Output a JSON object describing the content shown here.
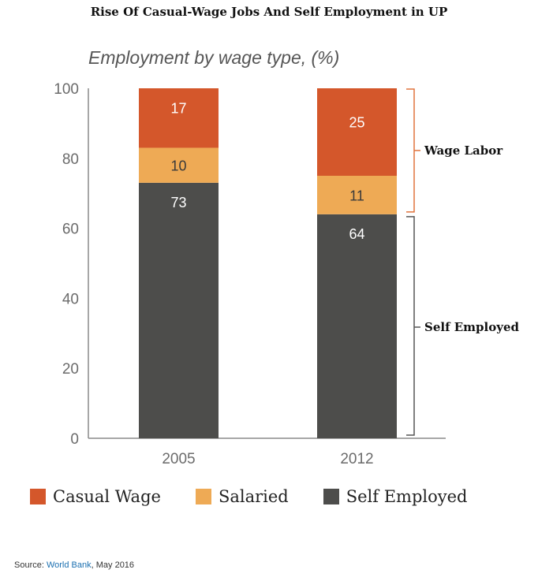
{
  "title": "Rise Of Casual-Wage Jobs And Self Employment in UP",
  "chart_data": {
    "type": "bar",
    "stacked": true,
    "title": "Employment by wage type, (%)",
    "categories": [
      "2005",
      "2012"
    ],
    "series": [
      {
        "name": "Self Employed",
        "values": [
          73,
          64
        ],
        "color": "#4d4d4b"
      },
      {
        "name": "Salaried",
        "values": [
          10,
          11
        ],
        "color": "#eeaa55"
      },
      {
        "name": "Casual Wage",
        "values": [
          17,
          25
        ],
        "color": "#d4572b"
      }
    ],
    "ylim": [
      0,
      100
    ],
    "yticks": [
      "0",
      "20",
      "40",
      "60",
      "80",
      "100"
    ],
    "xlabel": "",
    "ylabel": "",
    "annotations": [
      "Wage Labor",
      "Self Employed"
    ],
    "legend": [
      "Casual Wage",
      "Salaried",
      "Self Employed"
    ],
    "legend_position": "bottom"
  },
  "source": {
    "prefix": "Source: ",
    "link": "World Bank",
    "suffix": ", May 2016"
  }
}
